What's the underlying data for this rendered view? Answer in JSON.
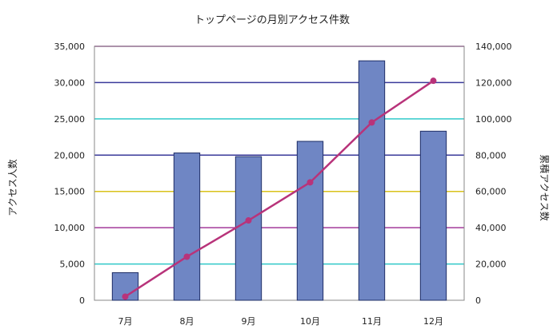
{
  "chart_data": {
    "type": "bar",
    "title": "トップページの月別アクセス件数",
    "categories": [
      "7月",
      "8月",
      "9月",
      "10月",
      "11月",
      "12月"
    ],
    "series": [
      {
        "values": [
          3800,
          20300,
          19800,
          21900,
          33000,
          23300
        ],
        "axis": "left",
        "type": "bar",
        "color": "#6f86c4"
      },
      {
        "values": [
          2000,
          24000,
          44000,
          65000,
          98000,
          121000
        ],
        "axis": "right",
        "type": "line",
        "color": "#b8337a"
      }
    ],
    "ylabel": "アクセス人数",
    "ylabel_right": "累積アクセス数",
    "yticks": [
      "0",
      "5,000",
      "10,000",
      "15,000",
      "20,000",
      "25,000",
      "30,000",
      "35,000"
    ],
    "yticks_right": [
      "0",
      "20,000",
      "40,000",
      "60,000",
      "80,000",
      "100,000",
      "120,000",
      "140,000"
    ],
    "ylim": [
      0,
      35000
    ],
    "ylim_right": [
      0,
      140000
    ],
    "grid": true,
    "grid_colors": [
      "#30c9c9",
      "#a23a9a",
      "#d9c21a",
      "#3a3a9a",
      "#30c9c9",
      "#3a3a9a",
      "#a23a9a"
    ]
  }
}
